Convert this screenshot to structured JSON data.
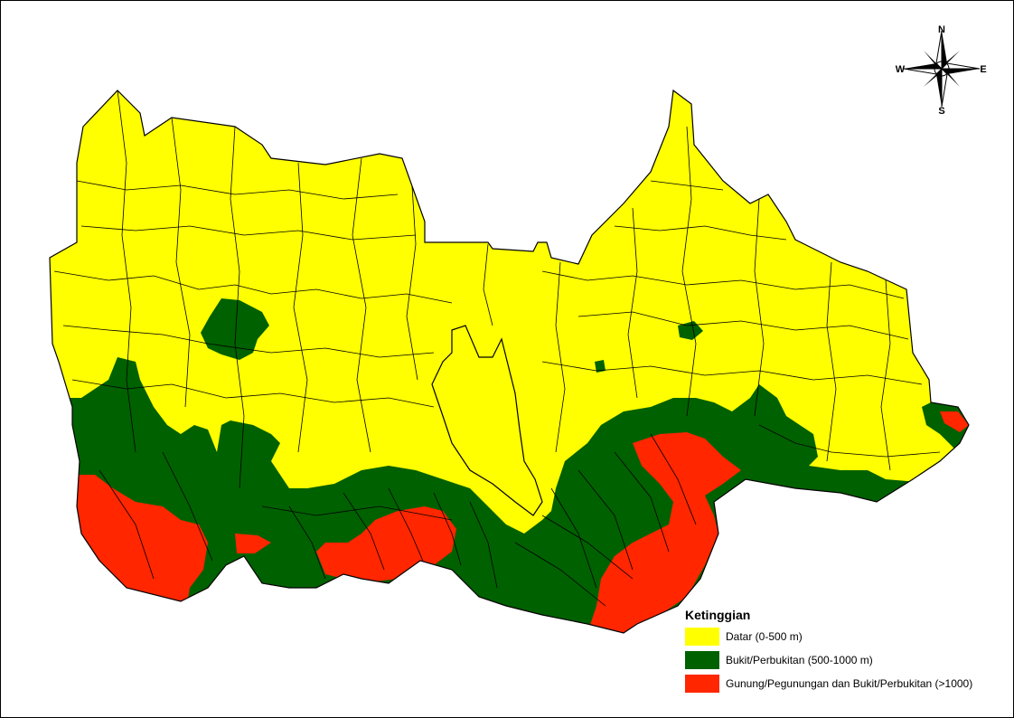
{
  "compass": {
    "north": "N",
    "south": "S",
    "east": "E",
    "west": "W"
  },
  "legend": {
    "title": "Ketinggian",
    "items": [
      {
        "label": "Datar (0-500 m)",
        "color": "#ffff00"
      },
      {
        "label": "Bukit/Perbukitan (500-1000 m)",
        "color": "#006100"
      },
      {
        "label": "Gunung/Pegunungan dan Bukit/Perbukitan (>1000)",
        "color": "#ff2600"
      }
    ]
  },
  "colors": {
    "outline": "#000000",
    "background": "#ffffff"
  }
}
